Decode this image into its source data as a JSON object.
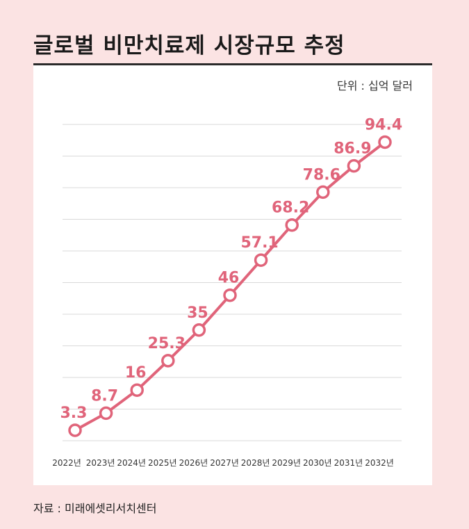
{
  "header": {
    "title": "글로벌 비만치료제 시장규모 추정"
  },
  "unit_label": "단위 : 십억 달러",
  "source": "자료 : 미래에셋리서치센터",
  "colors": {
    "accent": "#e0647a",
    "background": "#fbe3e3",
    "panel": "#ffffff"
  },
  "chart_data": {
    "type": "line",
    "title": "글로벌 비만치료제 시장규모 추정",
    "xlabel": "",
    "ylabel": "",
    "categories": [
      "2022년",
      "2023년",
      "2024년",
      "2025년",
      "2026년",
      "2027년",
      "2028년",
      "2029년",
      "2030년",
      "2031년",
      "2032년"
    ],
    "series": [
      {
        "values": [
          3.3,
          8.7,
          16,
          25.3,
          35,
          46,
          57.1,
          68.2,
          78.6,
          86.9,
          94.4
        ],
        "labels": [
          "3.3",
          "8.7",
          "16",
          "25.3",
          "35",
          "46",
          "57.1",
          "68.2",
          "78.6",
          "86.9",
          "94.4"
        ]
      }
    ],
    "ylim": [
      0,
      100
    ],
    "grid": true,
    "legend": "none"
  }
}
